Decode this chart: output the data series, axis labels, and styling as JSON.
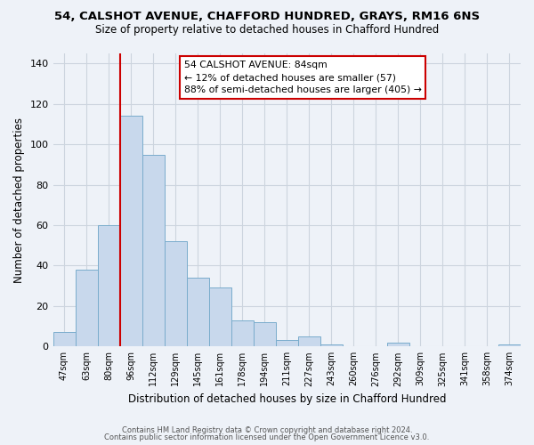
{
  "title_line1": "54, CALSHOT AVENUE, CHAFFORD HUNDRED, GRAYS, RM16 6NS",
  "title_line2": "Size of property relative to detached houses in Chafford Hundred",
  "xlabel": "Distribution of detached houses by size in Chafford Hundred",
  "ylabel": "Number of detached properties",
  "footer_line1": "Contains HM Land Registry data © Crown copyright and database right 2024.",
  "footer_line2": "Contains public sector information licensed under the Open Government Licence v3.0.",
  "bin_labels": [
    "47sqm",
    "63sqm",
    "80sqm",
    "96sqm",
    "112sqm",
    "129sqm",
    "145sqm",
    "161sqm",
    "178sqm",
    "194sqm",
    "211sqm",
    "227sqm",
    "243sqm",
    "260sqm",
    "276sqm",
    "292sqm",
    "309sqm",
    "325sqm",
    "341sqm",
    "358sqm",
    "374sqm"
  ],
  "bar_heights": [
    7,
    38,
    60,
    114,
    95,
    52,
    34,
    29,
    13,
    12,
    3,
    5,
    1,
    0,
    0,
    2,
    0,
    0,
    0,
    0,
    1
  ],
  "bar_color": "#c8d8ec",
  "bar_edge_color": "#7aaccc",
  "bg_color": "#eef2f8",
  "grid_color": "#ccd4de",
  "vline_x_index": 2,
  "vline_color": "#cc0000",
  "annotation_text": "54 CALSHOT AVENUE: 84sqm\n← 12% of detached houses are smaller (57)\n88% of semi-detached houses are larger (405) →",
  "annotation_box_color": "#ffffff",
  "annotation_box_edge": "#cc0000",
  "ylim": [
    0,
    145
  ],
  "yticks": [
    0,
    20,
    40,
    60,
    80,
    100,
    120,
    140
  ]
}
